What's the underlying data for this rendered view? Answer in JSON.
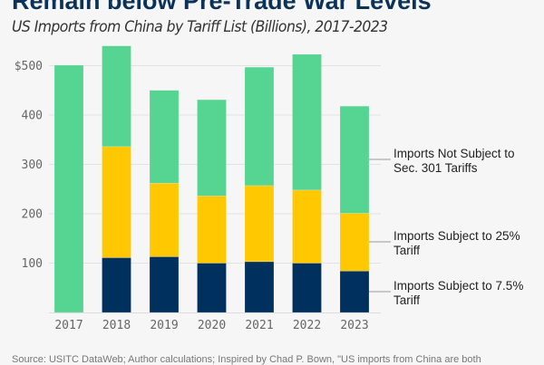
{
  "chart_data": {
    "type": "bar",
    "stacked": true,
    "title": "Remain below Pre-Trade War Levels",
    "subtitle": "US Imports from China by Tariff List (Billions), 2017-2023",
    "xlabel": "",
    "ylabel": "",
    "categories": [
      "2017",
      "2018",
      "2019",
      "2020",
      "2021",
      "2022",
      "2023"
    ],
    "ylim": [
      0,
      560
    ],
    "yticks": [
      100,
      200,
      300,
      400,
      500
    ],
    "ytick_labels": [
      "100",
      "200",
      "300",
      "400",
      "$500"
    ],
    "grid": true,
    "legend_placement": "right, inline labels",
    "series": [
      {
        "name": "Imports Subject to 7.5% Tariff",
        "label_lines": [
          "Imports Subject to 7.5%",
          "Tariff"
        ],
        "color": "#00305e",
        "values": [
          0,
          111,
          113,
          100,
          103,
          100,
          84
        ]
      },
      {
        "name": "Imports Subject to 25% Tariff",
        "label_lines": [
          "Imports Subject to 25%",
          "Tariff"
        ],
        "color": "#ffc800",
        "values": [
          0,
          225,
          149,
          136,
          154,
          148,
          117
        ]
      },
      {
        "name": "Imports Not Subject to Sec. 301 Tariffs",
        "label_lines": [
          "Imports Not Subject to",
          "Sec. 301 Tariffs"
        ],
        "color": "#56d492",
        "values": [
          501,
          204,
          188,
          195,
          240,
          275,
          217
        ]
      }
    ],
    "source": "Source: USITC DataWeb; Author calculations; Inspired by Chad P. Bown, \"US imports from China are both"
  }
}
